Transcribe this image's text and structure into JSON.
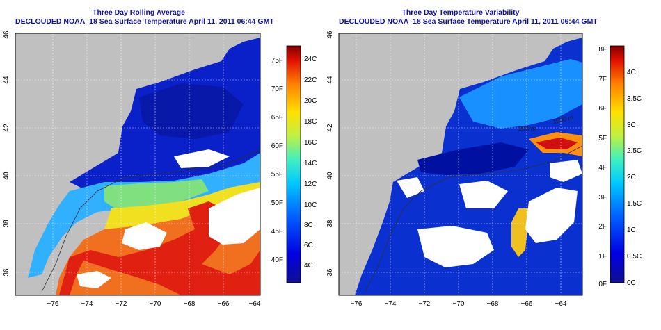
{
  "panels": [
    {
      "title": "Three Day Rolling Average",
      "subtitle": "DECLOUDED NOAA–18 Sea Surface Temperature April 11, 2011 06:44 GMT",
      "x_ticks": [
        "−76",
        "−74",
        "−72",
        "−70",
        "−68",
        "−66",
        "−64"
      ],
      "y_ticks": [
        "36",
        "38",
        "40",
        "42",
        "44",
        "46"
      ],
      "colorbar": {
        "left_labels": [
          "75F",
          "70F",
          "65F",
          "60F",
          "55F",
          "50F",
          "45F",
          "40F"
        ],
        "right_labels": [
          "24C",
          "22C",
          "20C",
          "18C",
          "16C",
          "14C",
          "12C",
          "10C",
          "8C",
          "6C",
          "4C"
        ]
      }
    },
    {
      "title": "Three Day Temperature Variability",
      "subtitle": "DECLOUDED NOAA–18 Sea Surface Temperature April 11, 2011 06:44 GMT",
      "x_ticks": [
        "−76",
        "−74",
        "−72",
        "−70",
        "−68",
        "−66",
        "−64"
      ],
      "y_ticks": [
        "36",
        "38",
        "40",
        "42",
        "44",
        "46"
      ],
      "contour_labels": [
        "200 m",
        "1000 m"
      ],
      "colorbar": {
        "left_labels": [
          "8F",
          "7F",
          "6F",
          "5F",
          "4F",
          "3F",
          "2F",
          "1F",
          "0F"
        ],
        "right_labels": [
          "4C",
          "3.5C",
          "3C",
          "2.5C",
          "2C",
          "1.5C",
          "1C",
          "0.5C",
          "0C"
        ]
      }
    }
  ],
  "colors": {
    "land": "#c0c0c0",
    "title_text": "#1010a0",
    "water_cold": "#0a20c8",
    "water_warm": "#e84010"
  }
}
